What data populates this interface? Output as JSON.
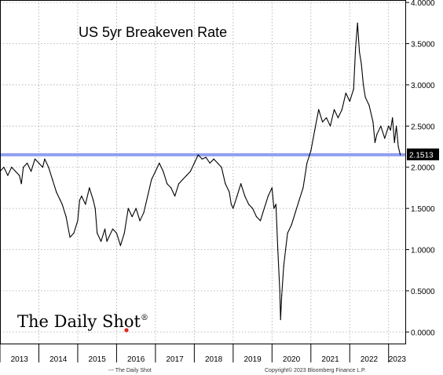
{
  "chart_data": {
    "type": "line",
    "title": "US 5yr Breakeven Rate",
    "xlabel": "",
    "ylabel": "",
    "ylim": [
      -0.15,
      4.03
    ],
    "xlim": [
      2013.0,
      2023.45
    ],
    "grid": true,
    "y_axis_side": "right",
    "y_ticks": [
      {
        "value": 0.0,
        "label": "0.0000"
      },
      {
        "value": 0.5,
        "label": "0.5000"
      },
      {
        "value": 1.0,
        "label": "1.0000"
      },
      {
        "value": 1.5,
        "label": "1.5000"
      },
      {
        "value": 2.0,
        "label": "2.0000"
      },
      {
        "value": 2.5,
        "label": "2.5000"
      },
      {
        "value": 3.0,
        "label": "3.0000"
      },
      {
        "value": 3.5,
        "label": "3.5000"
      },
      {
        "value": 4.0,
        "label": "4.0000"
      }
    ],
    "x_tick_labels": [
      "2013",
      "2014",
      "2015",
      "2016",
      "2017",
      "2018",
      "2019",
      "2020",
      "2021",
      "2022",
      "2023"
    ],
    "series": [
      {
        "color": "#000000",
        "x": [
          2013.0,
          2013.1,
          2013.2,
          2013.3,
          2013.4,
          2013.5,
          2013.55,
          2013.6,
          2013.7,
          2013.8,
          2013.9,
          2014.0,
          2014.1,
          2014.15,
          2014.25,
          2014.35,
          2014.45,
          2014.55,
          2014.6,
          2014.7,
          2014.8,
          2014.9,
          2015.0,
          2015.05,
          2015.1,
          2015.2,
          2015.3,
          2015.4,
          2015.45,
          2015.5,
          2015.6,
          2015.7,
          2015.75,
          2015.8,
          2015.9,
          2016.0,
          2016.1,
          2016.2,
          2016.3,
          2016.4,
          2016.5,
          2016.6,
          2016.7,
          2016.8,
          2016.9,
          2017.0,
          2017.1,
          2017.2,
          2017.3,
          2017.4,
          2017.5,
          2017.6,
          2017.7,
          2017.8,
          2017.9,
          2018.0,
          2018.1,
          2018.2,
          2018.3,
          2018.4,
          2018.5,
          2018.6,
          2018.7,
          2018.8,
          2018.9,
          2018.95,
          2019.0,
          2019.1,
          2019.2,
          2019.3,
          2019.4,
          2019.5,
          2019.6,
          2019.7,
          2019.8,
          2019.9,
          2020.0,
          2020.05,
          2020.1,
          2020.15,
          2020.2,
          2020.22,
          2020.25,
          2020.3,
          2020.35,
          2020.4,
          2020.5,
          2020.6,
          2020.7,
          2020.8,
          2020.9,
          2021.0,
          2021.1,
          2021.2,
          2021.3,
          2021.4,
          2021.5,
          2021.6,
          2021.7,
          2021.8,
          2021.9,
          2022.0,
          2022.1,
          2022.15,
          2022.2,
          2022.25,
          2022.3,
          2022.35,
          2022.4,
          2022.5,
          2022.6,
          2022.65,
          2022.7,
          2022.8,
          2022.9,
          2023.0,
          2023.05,
          2023.1,
          2023.15,
          2023.2,
          2023.25,
          2023.3
        ],
        "y": [
          1.95,
          2.0,
          1.9,
          2.0,
          1.95,
          1.9,
          1.8,
          2.0,
          2.05,
          1.95,
          2.1,
          2.05,
          2.0,
          2.1,
          2.0,
          1.85,
          1.7,
          1.6,
          1.55,
          1.4,
          1.15,
          1.2,
          1.35,
          1.6,
          1.65,
          1.55,
          1.75,
          1.6,
          1.5,
          1.2,
          1.1,
          1.25,
          1.1,
          1.15,
          1.25,
          1.2,
          1.05,
          1.2,
          1.5,
          1.4,
          1.5,
          1.35,
          1.45,
          1.65,
          1.85,
          1.95,
          2.05,
          1.95,
          1.8,
          1.75,
          1.65,
          1.8,
          1.85,
          1.9,
          1.95,
          2.05,
          2.15,
          2.1,
          2.12,
          2.05,
          2.1,
          2.05,
          2.0,
          1.8,
          1.7,
          1.55,
          1.5,
          1.65,
          1.8,
          1.65,
          1.55,
          1.5,
          1.4,
          1.35,
          1.5,
          1.65,
          1.75,
          1.5,
          1.55,
          1.0,
          0.5,
          0.15,
          0.45,
          0.8,
          1.0,
          1.2,
          1.3,
          1.45,
          1.6,
          1.75,
          2.05,
          2.2,
          2.45,
          2.7,
          2.55,
          2.6,
          2.5,
          2.7,
          2.6,
          2.7,
          2.9,
          2.8,
          2.95,
          3.45,
          3.75,
          3.4,
          3.25,
          3.0,
          2.85,
          2.75,
          2.55,
          2.3,
          2.4,
          2.5,
          2.35,
          2.5,
          2.45,
          2.6,
          2.3,
          2.5,
          2.25,
          2.15
        ]
      }
    ],
    "reference_lines": [
      {
        "value": 2.1513,
        "label": "2.1513",
        "color": "#8f9ff0"
      }
    ],
    "annotations": {
      "watermark": "The Daily Shot",
      "watermark_mark": "®",
      "footer_left": "--- The Daily Shot",
      "footer_right": "Copyright© 2023 Bloomberg Finance L.P."
    }
  }
}
